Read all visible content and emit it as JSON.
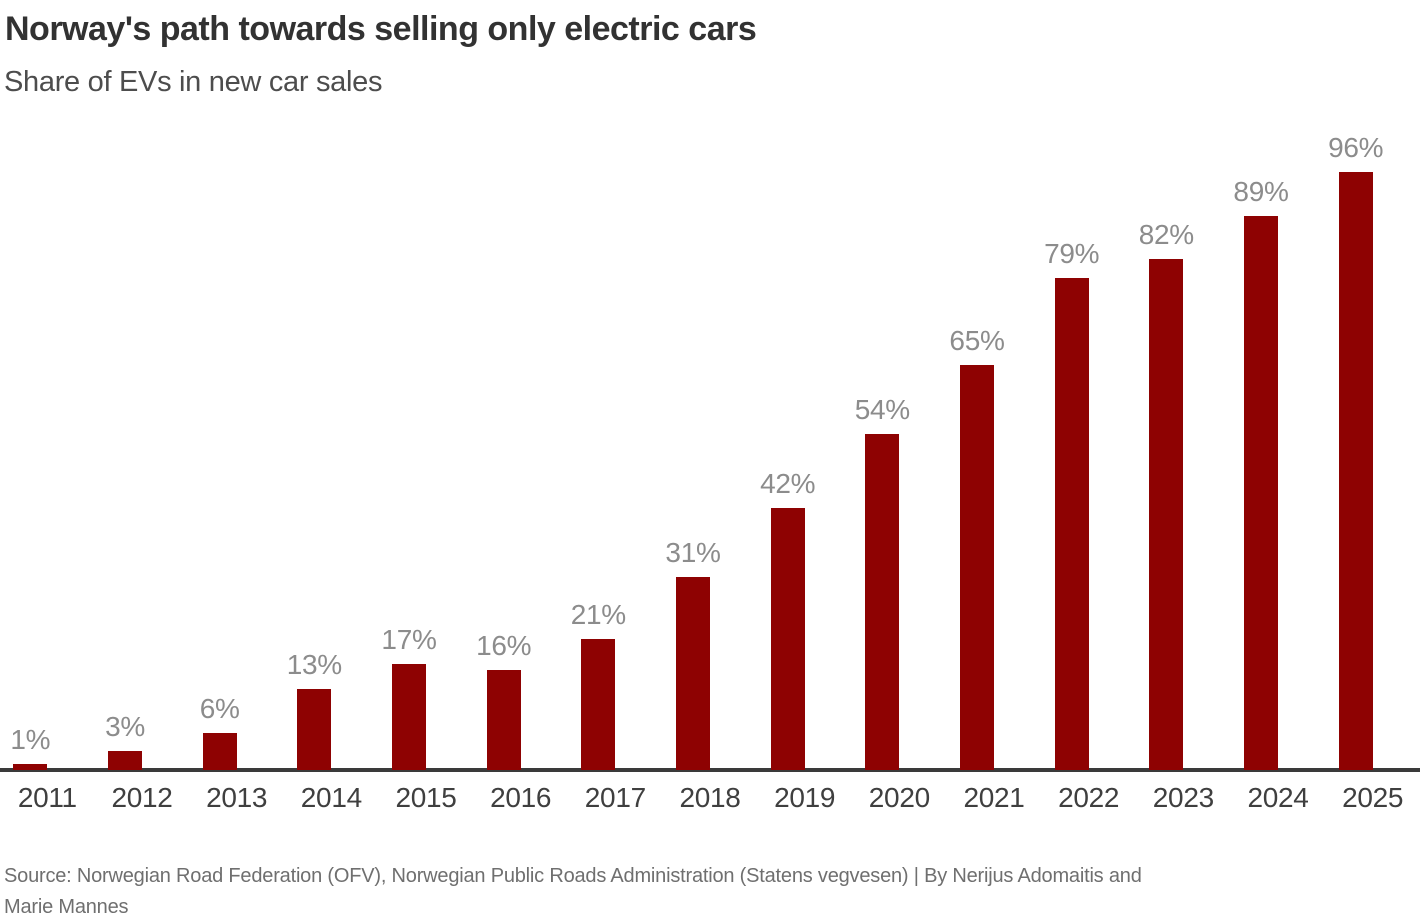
{
  "header": {
    "title": "Norway's path towards selling only electric cars",
    "subtitle": "Share of EVs in new car sales"
  },
  "chart_data": {
    "type": "bar",
    "categories": [
      "2011",
      "2012",
      "2013",
      "2014",
      "2015",
      "2016",
      "2017",
      "2018",
      "2019",
      "2020",
      "2021",
      "2022",
      "2023",
      "2024",
      "2025"
    ],
    "values": [
      1,
      3,
      6,
      13,
      17,
      16,
      21,
      31,
      42,
      54,
      65,
      79,
      82,
      89,
      96
    ],
    "value_labels": [
      "1%",
      "3%",
      "6%",
      "13%",
      "17%",
      "16%",
      "21%",
      "31%",
      "42%",
      "54%",
      "65%",
      "79%",
      "82%",
      "89%",
      "96%"
    ],
    "title": "Norway's path towards selling only electric cars",
    "subtitle": "Share of EVs in new car sales",
    "xlabel": "",
    "ylabel": "",
    "ylim": [
      0,
      100
    ],
    "grid": false,
    "legend": "none",
    "unit": "%",
    "colors": {
      "bar": "#8E0202",
      "value_label": "#8c8c8c",
      "axis_tick_label": "#3f3f3f",
      "axis_line": "#3a3a3a"
    }
  },
  "footer": {
    "source_line1": "Source: Norwegian Road Federation (OFV), Norwegian Public Roads Administration (Statens vegvesen)  | By Nerijus Adomaitis and",
    "source_line2": "Marie Mannes"
  }
}
